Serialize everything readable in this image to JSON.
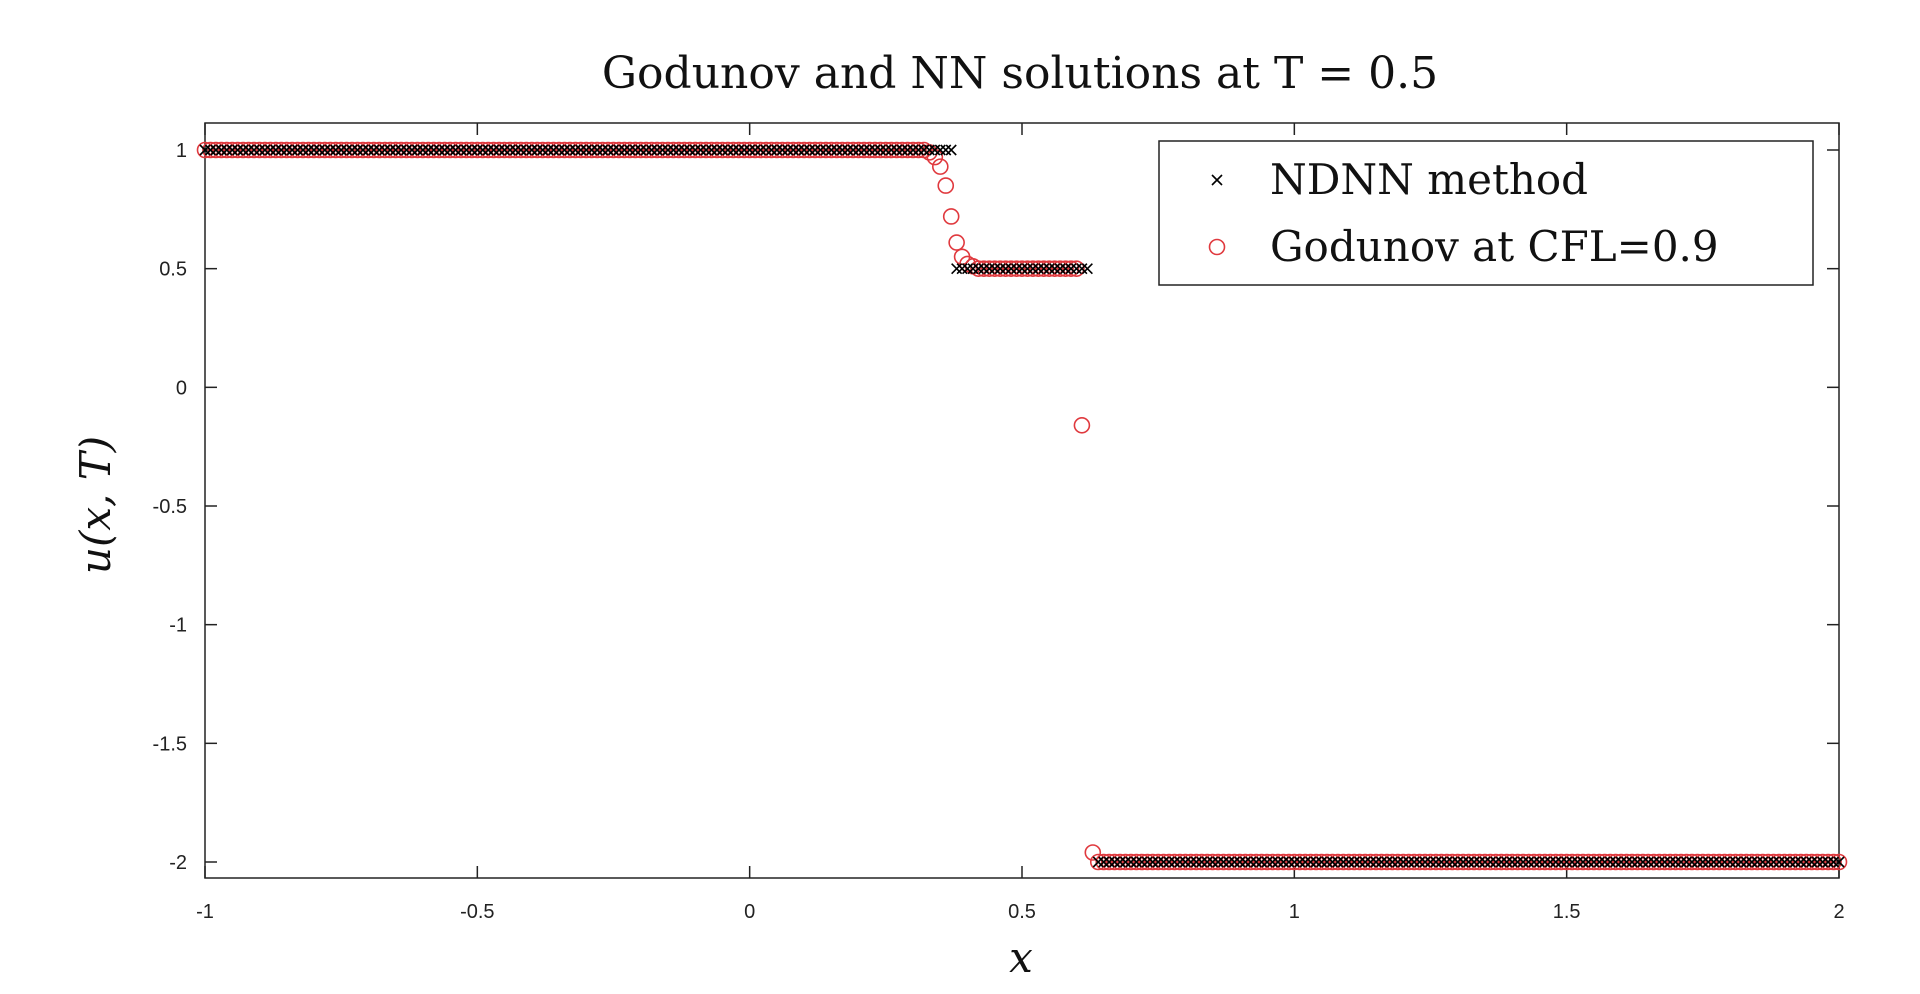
{
  "chart_data": {
    "type": "scatter",
    "title": "Godunov and NN solutions at T = 0.5",
    "xlabel": "x",
    "ylabel": "u(x, T)",
    "xlim": [
      -1,
      2
    ],
    "ylim": [
      -2.1,
      1.1
    ],
    "xticks": [
      -1,
      -0.5,
      0,
      0.5,
      1,
      1.5,
      2
    ],
    "xtick_labels": [
      "-1",
      "-0.5",
      "0",
      "0.5",
      "1",
      "1.5",
      "2"
    ],
    "yticks": [
      1,
      0.5,
      0,
      -0.5,
      -1,
      -1.5,
      -2
    ],
    "ytick_labels": [
      "1",
      "0.5",
      "0",
      "-0.5",
      "-1",
      "-1.5",
      "-2"
    ],
    "grid": false,
    "legend_position": "top-right",
    "series": [
      {
        "name": "NDNN method",
        "marker": "x",
        "color": "#000000",
        "segments": [
          {
            "x_start": -1.0,
            "x_end": 0.37,
            "y": 1.0
          },
          {
            "x_start": 0.38,
            "x_end": 0.62,
            "y": 0.5
          },
          {
            "x_start": 0.64,
            "x_end": 2.0,
            "y": -2.0
          }
        ],
        "dx": 0.01
      },
      {
        "name": "Godunov at CFL=0.9",
        "marker": "circle",
        "color": "#e0393e",
        "segments": [
          {
            "x_start": -1.0,
            "x_end": 0.32,
            "y": 1.0
          },
          {
            "x_start": 0.43,
            "x_end": 0.6,
            "y": 0.5
          },
          {
            "x_start": 0.64,
            "x_end": 2.0,
            "y": -2.0
          }
        ],
        "dx": 0.01,
        "points": [
          {
            "x": 0.33,
            "y": 0.99
          },
          {
            "x": 0.34,
            "y": 0.97
          },
          {
            "x": 0.35,
            "y": 0.93
          },
          {
            "x": 0.36,
            "y": 0.85
          },
          {
            "x": 0.37,
            "y": 0.72
          },
          {
            "x": 0.38,
            "y": 0.61
          },
          {
            "x": 0.39,
            "y": 0.55
          },
          {
            "x": 0.4,
            "y": 0.52
          },
          {
            "x": 0.41,
            "y": 0.51
          },
          {
            "x": 0.42,
            "y": 0.5
          },
          {
            "x": 0.61,
            "y": -0.16
          },
          {
            "x": 0.63,
            "y": -1.96
          }
        ]
      }
    ]
  }
}
